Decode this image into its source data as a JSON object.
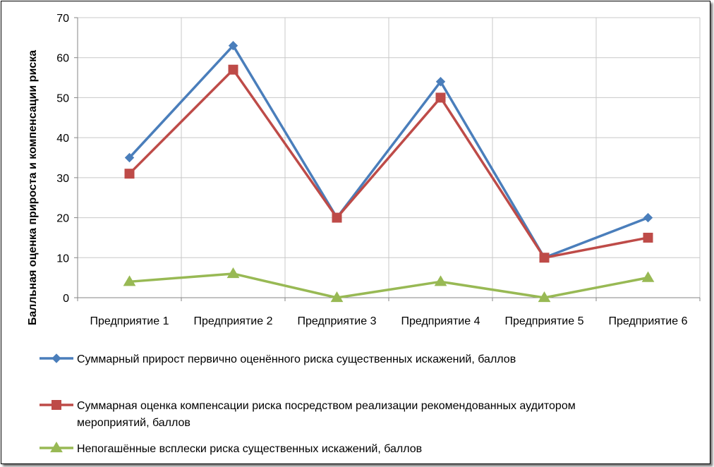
{
  "chart_data": {
    "type": "line",
    "title": "",
    "xlabel": "",
    "ylabel": "Балльная оценка прироста и компенсации риска",
    "categories": [
      "Предприятие 1",
      "Предприятие 2",
      "Предприятие 3",
      "Предприятие 4",
      "Предприятие 5",
      "Предприятие 6"
    ],
    "ylim": [
      0,
      70
    ],
    "yticks": [
      "0",
      "10",
      "20",
      "30",
      "40",
      "50",
      "60",
      "70"
    ],
    "grid": true,
    "legend_position": "bottom",
    "series": [
      {
        "name": "Суммарный прирост первично оценённого риска существенных искажений, баллов",
        "legend_lines": [
          "Суммарный прирост первично оценённого риска существенных искажений, баллов"
        ],
        "values": [
          35,
          63,
          20,
          54,
          10,
          20
        ],
        "color": "#4a7ebb",
        "marker": "diamond"
      },
      {
        "name": "Суммарная оценка компенсации риска посредством реализации рекомендованных аудитором мероприятий, баллов",
        "legend_lines": [
          "Суммарная оценка компенсации риска посредством реализации рекомендованных аудитором",
          "мероприятий, баллов"
        ],
        "values": [
          31,
          57,
          20,
          50,
          10,
          15
        ],
        "color": "#be4b48",
        "marker": "square"
      },
      {
        "name": "Непогашённые всплески риска существенных искажений, баллов",
        "legend_lines": [
          "Непогашённые всплески риска существенных искажений, баллов"
        ],
        "values": [
          4,
          6,
          0,
          4,
          0,
          5
        ],
        "color": "#98b954",
        "marker": "triangle"
      }
    ]
  }
}
